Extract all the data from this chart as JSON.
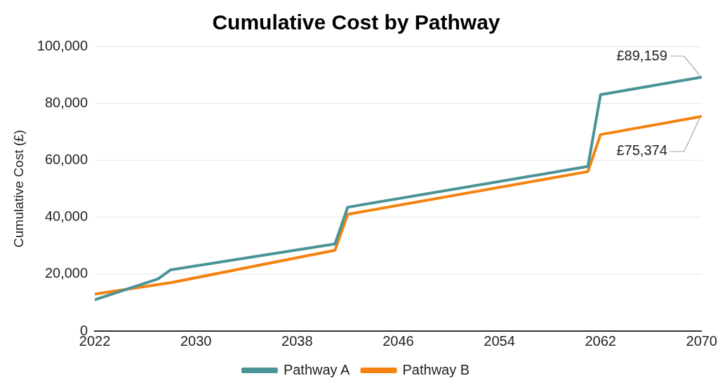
{
  "chart_data": {
    "type": "line",
    "title": "Cumulative Cost by Pathway",
    "ylabel": "Cumulative Cost (£)",
    "xlim": [
      2022,
      2070
    ],
    "xticks": [
      2022,
      2030,
      2038,
      2046,
      2054,
      2062,
      2070
    ],
    "ylim": [
      0,
      100000
    ],
    "yticks": [
      {
        "value": 0,
        "label": "0"
      },
      {
        "value": 20000,
        "label": "20,000"
      },
      {
        "value": 40000,
        "label": "40,000"
      },
      {
        "value": 60000,
        "label": "60,000"
      },
      {
        "value": 80000,
        "label": "80,000"
      },
      {
        "value": 100000,
        "label": "100,000"
      }
    ],
    "grid": "y",
    "legend": "bottom",
    "marker": "none",
    "line_style": "solid",
    "series": [
      {
        "name": "Pathway A",
        "color": "#4a9396",
        "x": [
          2022,
          2027,
          2028,
          2041,
          2042,
          2061,
          2062,
          2070
        ],
        "values": [
          11000,
          18300,
          21500,
          30600,
          43500,
          57800,
          83000,
          89159
        ]
      },
      {
        "name": "Pathway B",
        "color": "#f5820f",
        "x": [
          2022,
          2028,
          2041,
          2042,
          2061,
          2062,
          2070
        ],
        "values": [
          13000,
          17000,
          28400,
          41000,
          56000,
          69000,
          75374
        ]
      }
    ],
    "annotations": [
      {
        "text": "£89,159",
        "x": 2070,
        "y": 89159
      },
      {
        "text": "£75,374",
        "x": 2070,
        "y": 75374
      }
    ]
  }
}
